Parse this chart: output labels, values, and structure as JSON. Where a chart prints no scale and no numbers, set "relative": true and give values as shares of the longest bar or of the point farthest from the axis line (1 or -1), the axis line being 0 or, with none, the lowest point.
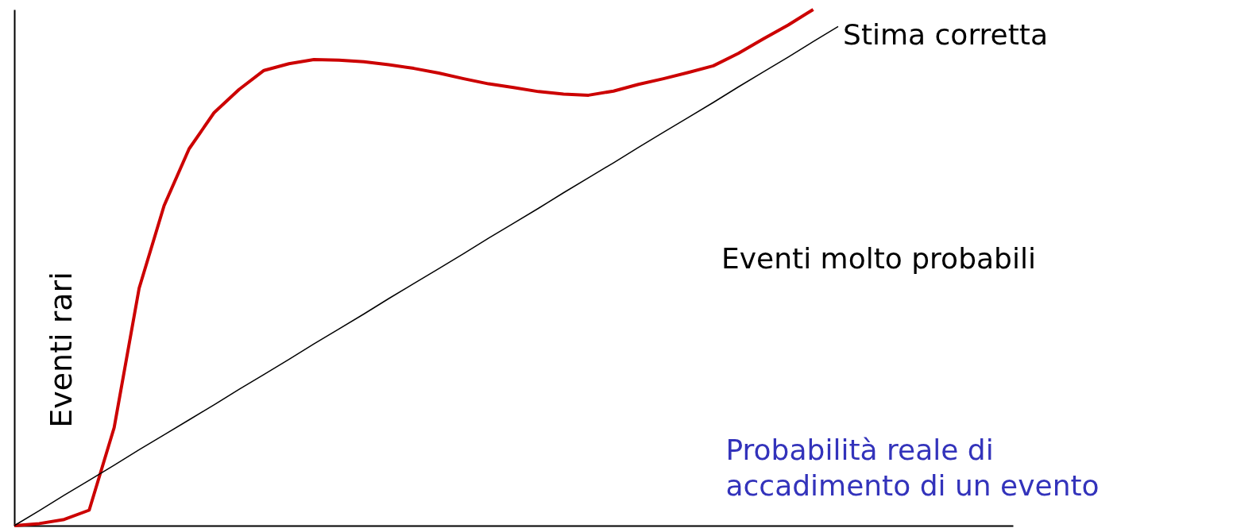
{
  "chart_data": {
    "type": "line",
    "relative": true,
    "xlabel": "Probabilità reale di accadimento di un evento",
    "ylabel": "Eventi rari",
    "annotations": [
      "Eventi molto probabili"
    ],
    "marker": "none",
    "line_style": "solid",
    "categories": [
      null,
      null,
      null,
      null,
      null,
      null,
      null,
      null,
      null,
      null,
      null,
      null,
      null,
      null,
      null,
      null,
      null,
      null,
      null,
      null,
      null,
      null,
      null,
      null,
      null,
      null,
      null,
      null,
      null,
      null,
      null,
      null,
      null,
      null,
      null,
      null,
      null,
      null,
      null,
      null,
      null
    ],
    "series": [
      {
        "color": "#cc0000",
        "values": [
          0,
          0.004,
          0.012,
          0.03,
          0.19,
          0.46,
          0.62,
          0.73,
          0.8,
          0.845,
          0.882,
          0.895,
          0.903,
          0.902,
          0.899,
          0.893,
          0.886,
          0.877,
          0.866,
          0.856,
          0.849,
          0.841,
          0.836,
          0.834,
          0.842,
          0.855,
          0.866,
          0.878,
          0.891,
          0.915,
          0.943,
          0.97,
          1.0,
          null,
          null,
          null,
          null,
          null,
          null,
          null,
          null
        ]
      },
      {
        "name": "Stima corretta",
        "color": "#000000",
        "values": [
          0,
          0.029,
          0.059,
          0.088,
          0.117,
          0.147,
          0.176,
          0.205,
          0.234,
          0.264,
          0.293,
          0.322,
          0.352,
          0.381,
          0.41,
          0.44,
          0.469,
          0.498,
          0.527,
          0.557,
          0.586,
          0.615,
          0.645,
          0.674,
          0.703,
          0.733,
          0.762,
          0.791,
          0.82,
          0.85,
          0.879,
          0.908,
          0.938,
          0.967,
          null,
          null,
          null,
          null,
          null,
          null,
          null
        ]
      }
    ]
  }
}
